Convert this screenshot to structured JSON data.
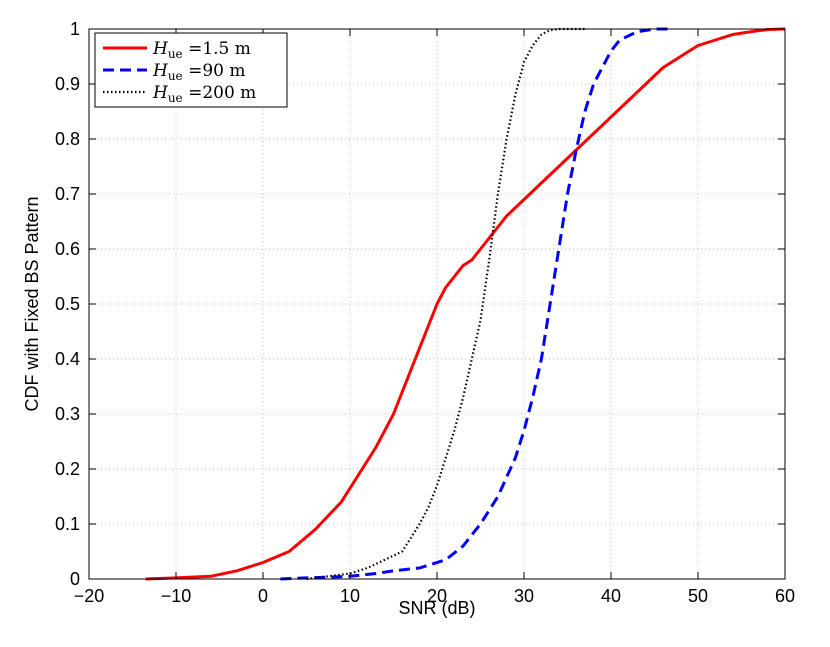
{
  "chart_data": {
    "type": "line",
    "xlabel": "SNR (dB)",
    "ylabel": "CDF with Fixed BS Pattern",
    "xlim": [
      -20,
      60
    ],
    "ylim": [
      0,
      1
    ],
    "xticks": [
      "−20",
      "−10",
      "0",
      "10",
      "20",
      "30",
      "40",
      "50",
      "60"
    ],
    "yticks": [
      "0",
      "0.1",
      "0.2",
      "0.3",
      "0.4",
      "0.5",
      "0.6",
      "0.7",
      "0.8",
      "0.9",
      "1"
    ],
    "grid": true,
    "legend_position": "top-left",
    "series": [
      {
        "name_prefix": "H",
        "name_sub": "ue",
        "name_suffix": " =1.5  m",
        "color": "#ff0000",
        "style": "solid",
        "x": [
          -13.5,
          -10,
          -6,
          -3,
          0,
          3,
          6,
          9,
          11,
          13,
          15,
          16,
          17,
          18,
          19,
          20,
          21,
          22,
          23,
          24,
          25,
          26,
          28,
          30,
          32,
          34,
          36,
          38,
          40,
          42,
          44,
          46,
          48,
          50,
          52,
          54,
          56,
          58,
          60
        ],
        "y": [
          0.0,
          0.002,
          0.005,
          0.015,
          0.03,
          0.05,
          0.09,
          0.14,
          0.19,
          0.24,
          0.3,
          0.34,
          0.38,
          0.42,
          0.46,
          0.5,
          0.53,
          0.55,
          0.57,
          0.58,
          0.6,
          0.62,
          0.66,
          0.69,
          0.72,
          0.75,
          0.78,
          0.81,
          0.84,
          0.87,
          0.9,
          0.93,
          0.95,
          0.97,
          0.98,
          0.99,
          0.995,
          0.999,
          1.0
        ]
      },
      {
        "name_prefix": "H",
        "name_sub": "ue",
        "name_suffix": " =90  m",
        "color": "#0000ff",
        "style": "dashed",
        "x": [
          2,
          5,
          10,
          13,
          15,
          18,
          21,
          23,
          25,
          27,
          29,
          30,
          31,
          32,
          33,
          34,
          35,
          36,
          37,
          38,
          39,
          40,
          41,
          43,
          45,
          47
        ],
        "y": [
          0.0,
          0.002,
          0.005,
          0.01,
          0.015,
          0.02,
          0.035,
          0.06,
          0.1,
          0.15,
          0.22,
          0.27,
          0.33,
          0.4,
          0.5,
          0.6,
          0.7,
          0.78,
          0.85,
          0.9,
          0.93,
          0.96,
          0.98,
          0.995,
          1.0,
          1.0
        ]
      },
      {
        "name_prefix": "H",
        "name_sub": "ue",
        "name_suffix": " =200  m",
        "color": "#000000",
        "style": "dotted",
        "x": [
          5,
          10,
          12,
          14,
          16,
          18,
          19,
          20,
          21,
          22,
          23,
          24,
          25,
          26,
          27,
          28,
          29,
          30,
          31,
          32,
          33,
          34,
          35,
          37
        ],
        "y": [
          0.0,
          0.01,
          0.02,
          0.035,
          0.05,
          0.1,
          0.13,
          0.17,
          0.22,
          0.27,
          0.33,
          0.4,
          0.47,
          0.58,
          0.7,
          0.8,
          0.88,
          0.94,
          0.97,
          0.99,
          0.998,
          1.0,
          1.0,
          1.0
        ]
      }
    ]
  }
}
